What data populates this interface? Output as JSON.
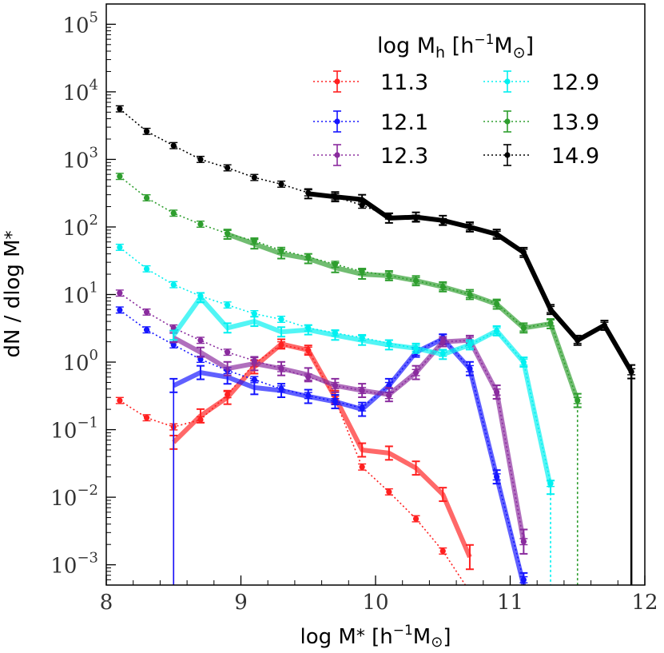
{
  "chart_data": {
    "type": "line",
    "xlabel": "log M* [h^-1 M_sun]",
    "ylabel": "dN / dlog M*",
    "xlim": [
      8,
      12
    ],
    "ylog_range": [
      -3.3,
      5.3
    ],
    "x_ticks": [
      "8",
      "9",
      "10",
      "11",
      "12"
    ],
    "y_ticks": [
      {
        "exp": 5,
        "label": "10",
        "sup": "5"
      },
      {
        "exp": 4,
        "label": "10",
        "sup": "4"
      },
      {
        "exp": 3,
        "label": "10",
        "sup": "3"
      },
      {
        "exp": 2,
        "label": "10",
        "sup": "2"
      },
      {
        "exp": 1,
        "label": "10",
        "sup": "1"
      },
      {
        "exp": 0,
        "label": "10",
        "sup": "0"
      },
      {
        "exp": -1,
        "label": "10",
        "sup": "−1"
      },
      {
        "exp": -2,
        "label": "10",
        "sup": "−2"
      },
      {
        "exp": -3,
        "label": "10",
        "sup": "−3"
      }
    ],
    "legend": {
      "title": "log M_h [h^-1 M_sun]",
      "placement": "top-right"
    },
    "series": [
      {
        "name": "11.3",
        "color": "#ff2020",
        "dotted": {
          "x": [
            8.1,
            8.3,
            8.5,
            8.7,
            8.9,
            9.1,
            9.3,
            9.5,
            9.7,
            9.9,
            10.1,
            10.3,
            10.5,
            10.7
          ],
          "y": [
            0.27,
            0.15,
            0.11,
            0.14,
            0.33,
            0.95,
            1.8,
            1.5,
            0.28,
            0.028,
            0.012,
            0.0048,
            0.0016,
            0.0004
          ]
        },
        "solid": {
          "x": [
            8.5,
            8.7,
            8.9,
            9.1,
            9.3,
            9.5,
            9.7,
            9.9,
            10.1,
            10.3,
            10.5,
            10.7
          ],
          "y": [
            0.065,
            0.16,
            0.3,
            0.85,
            1.85,
            1.5,
            0.3,
            0.05,
            0.045,
            0.027,
            0.011,
            0.0013
          ]
        }
      },
      {
        "name": "12.1",
        "color": "#1515ff",
        "dotted": {
          "x": [
            8.1,
            8.3,
            8.5,
            8.7,
            8.9,
            9.1,
            9.3,
            9.5,
            9.7,
            9.9,
            10.1,
            10.3,
            10.5,
            10.7,
            10.9,
            11.1
          ],
          "y": [
            5.9,
            3.0,
            1.8,
            1.1,
            0.75,
            0.55,
            0.4,
            0.32,
            0.26,
            0.21,
            0.45,
            1.4,
            2.3,
            0.8,
            0.02,
            0.0006
          ]
        },
        "solid": {
          "x": [
            8.5,
            8.7,
            8.9,
            9.1,
            9.3,
            9.5,
            9.7,
            9.9,
            10.1,
            10.3,
            10.5,
            10.7,
            10.9,
            11.1
          ],
          "y": [
            0.45,
            0.7,
            0.6,
            0.42,
            0.38,
            0.31,
            0.26,
            0.2,
            0.45,
            1.4,
            2.2,
            0.8,
            0.02,
            0.0005
          ]
        }
      },
      {
        "name": "12.3",
        "color": "#8a2b9e",
        "dotted": {
          "x": [
            8.1,
            8.3,
            8.5,
            8.7,
            8.9,
            9.1,
            9.3,
            9.5,
            9.7,
            9.9,
            10.1,
            10.3,
            10.5,
            10.7,
            10.9,
            11.1
          ],
          "y": [
            10.5,
            5.5,
            3.2,
            2.1,
            1.4,
            1.05,
            0.8,
            0.6,
            0.45,
            0.38,
            0.32,
            0.7,
            2.0,
            2.1,
            0.36,
            0.0022
          ]
        },
        "solid": {
          "x": [
            8.5,
            8.7,
            8.9,
            9.1,
            9.3,
            9.5,
            9.7,
            9.9,
            10.1,
            10.3,
            10.5,
            10.7,
            10.9,
            11.1
          ],
          "y": [
            2.3,
            1.4,
            0.8,
            0.95,
            0.8,
            0.65,
            0.45,
            0.38,
            0.33,
            0.7,
            2.0,
            2.1,
            0.36,
            0.0022
          ]
        }
      },
      {
        "name": "12.9",
        "color": "#00f0f0",
        "dotted": {
          "x": [
            8.1,
            8.3,
            8.5,
            8.7,
            8.9,
            9.1,
            9.3,
            9.5,
            9.7,
            9.9,
            10.1,
            10.3,
            10.5,
            10.7,
            10.9,
            11.1,
            11.3
          ],
          "y": [
            50,
            24,
            14,
            9.5,
            7.0,
            5.2,
            4.3,
            3.2,
            2.7,
            2.3,
            1.9,
            1.6,
            1.35,
            1.8,
            2.9,
            1.0,
            0.016
          ]
        },
        "solid": {
          "x": [
            8.5,
            8.7,
            8.9,
            9.1,
            9.3,
            9.5,
            9.7,
            9.9,
            10.1,
            10.3,
            10.5,
            10.7,
            10.9,
            11.1,
            11.3
          ],
          "y": [
            2.5,
            9.0,
            3.2,
            4.0,
            2.8,
            3.0,
            2.5,
            2.1,
            1.8,
            1.6,
            1.3,
            1.8,
            2.9,
            1.0,
            0.014
          ]
        }
      },
      {
        "name": "13.9",
        "color": "#2e9e2e",
        "dotted": {
          "x": [
            8.1,
            8.3,
            8.5,
            8.7,
            8.9,
            9.1,
            9.3,
            9.5,
            9.7,
            9.9,
            10.1,
            10.3,
            10.5,
            10.7,
            10.9,
            11.1,
            11.3,
            11.5
          ],
          "y": [
            560,
            270,
            160,
            110,
            80,
            62,
            45,
            36,
            28,
            22,
            19,
            16,
            13,
            10,
            7.3,
            3.2,
            3.8,
            0.27
          ]
        },
        "solid": {
          "x": [
            8.9,
            9.1,
            9.3,
            9.5,
            9.7,
            9.9,
            10.1,
            10.3,
            10.5,
            10.7,
            10.9,
            11.1,
            11.3,
            11.5
          ],
          "y": [
            78,
            56,
            40,
            34,
            25,
            20,
            19,
            16,
            13,
            10,
            7.2,
            3.2,
            3.7,
            0.27
          ]
        }
      },
      {
        "name": "14.9",
        "color": "#000000",
        "dotted": {
          "x": [
            8.1,
            8.3,
            8.5,
            8.7,
            8.9,
            9.1,
            9.3,
            9.5,
            9.7,
            9.9,
            10.1,
            10.3,
            10.5,
            10.7,
            10.9,
            11.1,
            11.3,
            11.5,
            11.7,
            11.9
          ],
          "y": [
            5600,
            2600,
            1600,
            1000,
            750,
            540,
            430,
            320,
            280,
            210,
            145,
            135,
            120,
            100,
            78,
            42,
            6.0,
            2.1,
            3.5,
            0.72
          ]
        },
        "solid": {
          "x": [
            9.5,
            9.7,
            9.9,
            10.1,
            10.3,
            10.5,
            10.7,
            10.9,
            11.1,
            11.3,
            11.5,
            11.7,
            11.9
          ],
          "y": [
            310,
            280,
            255,
            135,
            140,
            125,
            100,
            78,
            42,
            6.0,
            2.1,
            3.5,
            0.72
          ]
        }
      }
    ]
  }
}
